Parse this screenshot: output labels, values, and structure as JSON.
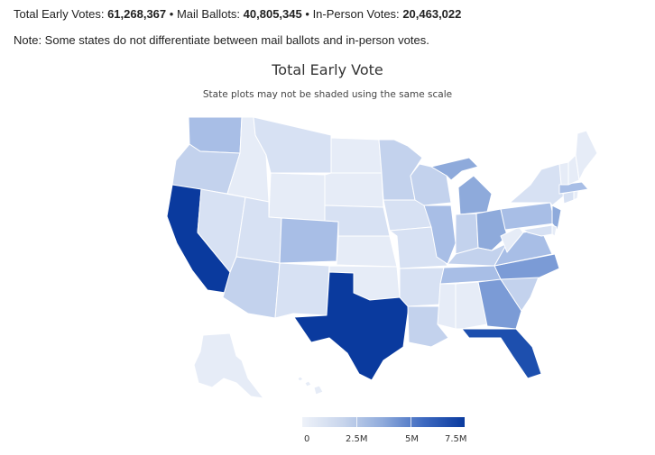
{
  "summary": {
    "total_label": "Total Early Votes:",
    "total_value": "61,268,367",
    "mail_label": "Mail Ballots:",
    "mail_value": "40,805,345",
    "inperson_label": "In-Person Votes:",
    "inperson_value": "20,463,022",
    "separator": "•"
  },
  "note": "Note: Some states do not differentiate between mail ballots and in-person votes.",
  "map": {
    "title": "Total Early Vote",
    "subtitle": "State plots may not be shaded using the same scale",
    "legend": {
      "labels": [
        "0",
        "2.5M",
        "5M",
        "7.5M"
      ]
    },
    "colors": {
      "darkest": "#0a3a9e",
      "dark": "#1d4fae",
      "mid": "#7b9bd6",
      "midlight": "#a8bee6",
      "light": "#c3d2ed",
      "lighter": "#d7e1f3",
      "lightest": "#e6ecf7"
    }
  }
}
